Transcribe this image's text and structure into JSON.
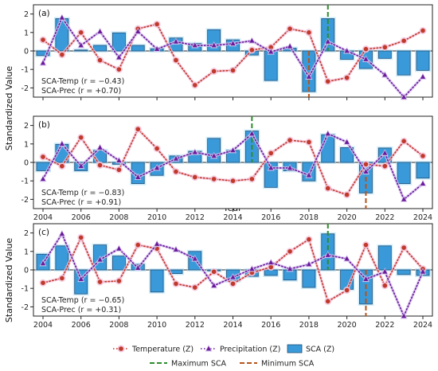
{
  "chart_data": {
    "type": "bar",
    "ylabel": "Standardized Value",
    "xlabel": "Year",
    "ylim": [
      -2.5,
      2.5
    ],
    "x_ticks": [
      2004,
      2006,
      2008,
      2010,
      2012,
      2014,
      2016,
      2018,
      2020,
      2022,
      2024
    ],
    "y_ticks": [
      -2,
      -1,
      0,
      1,
      2
    ],
    "years": [
      2004,
      2005,
      2006,
      2007,
      2008,
      2009,
      2010,
      2011,
      2012,
      2013,
      2014,
      2015,
      2016,
      2017,
      2018,
      2019,
      2020,
      2021,
      2022,
      2023,
      2024
    ],
    "legend": {
      "temperature": "Temperature (Z)",
      "precipitation": "Precipitation (Z)",
      "sca": "SCA (Z)",
      "max_sca": "Maximum SCA",
      "min_sca": "Minimum SCA"
    },
    "colors": {
      "temperature": "#c0392b",
      "temperature_halo": "#f4c6dc",
      "precipitation": "#6a1b9a",
      "precipitation_halo": "#d9c6f0",
      "sca_fill": "#3a9ad9",
      "sca_edge": "#1f4e79",
      "sca_halo": "#a9def5",
      "max_sca": "#2e8b2e",
      "min_sca": "#b5541c"
    },
    "panels": [
      {
        "label": "(a)",
        "ann_temp": "SCA-Temp (r = −0.43)",
        "ann_prec": "SCA-Prec (r = +0.70)",
        "max_year": 2019,
        "min_year": 2018,
        "sca": [
          -0.25,
          1.75,
          0.05,
          0.3,
          0.98,
          0.3,
          0.12,
          0.7,
          0.4,
          1.15,
          0.6,
          -0.22,
          -1.6,
          0.15,
          -2.2,
          1.75,
          -0.45,
          -0.95,
          -0.4,
          -1.3,
          -1.05
        ],
        "temperature": [
          0.6,
          -0.2,
          1.0,
          -0.5,
          -1.0,
          1.2,
          1.45,
          -0.5,
          -1.85,
          -1.1,
          -1.05,
          0.05,
          0.2,
          1.2,
          1.0,
          -1.65,
          -1.45,
          0.1,
          0.2,
          0.55,
          1.1
        ],
        "precipitation": [
          -0.65,
          1.8,
          0.3,
          1.05,
          -0.35,
          1.05,
          0.1,
          0.5,
          0.3,
          0.3,
          0.4,
          0.55,
          -0.05,
          0.25,
          -1.4,
          0.5,
          0.0,
          -0.45,
          -1.3,
          -2.5,
          -1.4
        ]
      },
      {
        "label": "(b)",
        "ann_temp": "SCA-Temp (r = −0.83)",
        "ann_prec": "SCA-Prec (r = +0.91)",
        "max_year": 2015,
        "min_year": 2021,
        "sca": [
          -0.45,
          0.98,
          -0.45,
          0.65,
          -0.1,
          -1.15,
          -0.7,
          0.35,
          0.6,
          1.3,
          0.65,
          1.7,
          -1.35,
          -0.45,
          -1.0,
          1.5,
          0.8,
          -1.65,
          0.78,
          -1.15,
          -0.85
        ],
        "temperature": [
          0.3,
          -0.2,
          1.35,
          -0.15,
          -0.4,
          1.8,
          0.75,
          -0.5,
          -0.8,
          -0.9,
          -1.0,
          -0.9,
          0.5,
          1.2,
          1.1,
          -1.4,
          -1.75,
          -0.1,
          -0.2,
          1.15,
          0.35
        ],
        "precipitation": [
          -0.9,
          1.0,
          -0.2,
          0.8,
          0.1,
          -0.8,
          -0.3,
          0.2,
          0.55,
          0.35,
          0.65,
          1.55,
          -0.3,
          -0.3,
          -0.7,
          1.55,
          1.1,
          -0.5,
          0.5,
          -2.0,
          -1.15
        ]
      },
      {
        "label": "(c)",
        "ann_temp": "SCA-Temp (r = −0.65)",
        "ann_prec": "SCA-Prec (r = +0.31)",
        "max_year": 2019,
        "min_year": 2021,
        "sca": [
          0.85,
          1.3,
          -1.3,
          1.35,
          0.75,
          0.3,
          -1.2,
          -0.2,
          1.0,
          -0.05,
          -0.6,
          -0.35,
          -0.3,
          -0.55,
          -0.95,
          1.95,
          -1.05,
          -1.85,
          1.3,
          -0.25,
          -0.3
        ],
        "temperature": [
          -0.7,
          -0.45,
          1.75,
          -0.65,
          -0.6,
          1.35,
          1.15,
          -0.75,
          -0.95,
          -0.1,
          -0.75,
          -0.15,
          0.15,
          1.0,
          1.65,
          -1.7,
          -1.1,
          1.35,
          -0.85,
          1.2,
          0.05
        ],
        "precipitation": [
          0.35,
          1.95,
          -0.5,
          0.55,
          1.15,
          0.1,
          1.4,
          1.1,
          0.6,
          -0.85,
          -0.4,
          0.05,
          0.4,
          0.05,
          0.3,
          0.8,
          0.6,
          -0.5,
          -0.1,
          -2.5,
          -0.1
        ]
      }
    ]
  }
}
